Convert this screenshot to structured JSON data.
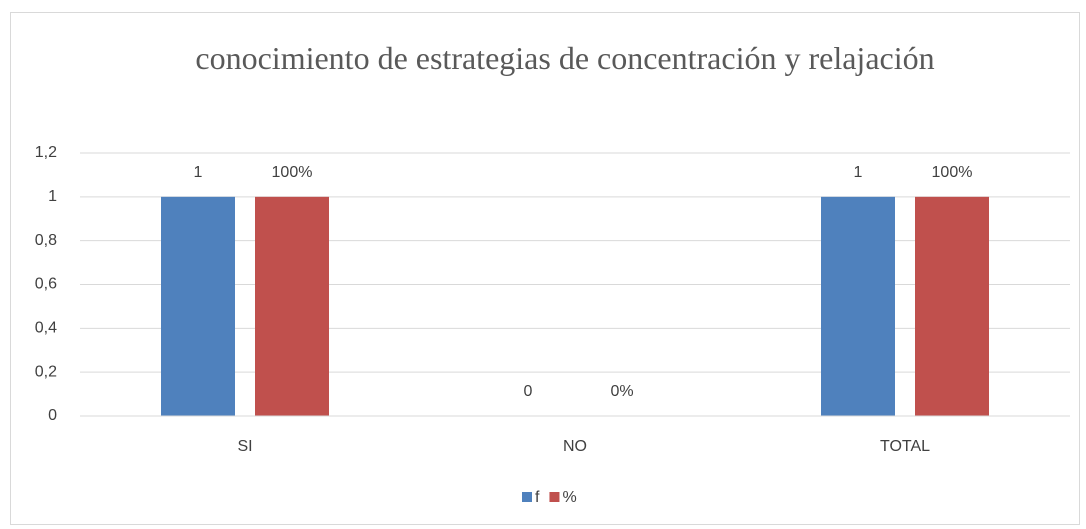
{
  "chart_data": {
    "type": "bar",
    "title": "conocimiento de estrategias de concentración  y relajación",
    "categories": [
      "SI",
      "NO",
      "TOTAL"
    ],
    "series": [
      {
        "name": "f",
        "color": "#4f81bd",
        "values": [
          1,
          0,
          1
        ]
      },
      {
        "name": "%",
        "color": "#c0504d",
        "values": [
          1,
          0,
          1
        ],
        "value_labels": [
          "100%",
          "0%",
          "100%"
        ]
      }
    ],
    "ylim": [
      0,
      1.2
    ],
    "yticks": [
      0,
      {
        "value": 0.2,
        "label": "0,2"
      },
      {
        "value": 0.4,
        "label": "0,4"
      },
      {
        "value": 0.6,
        "label": "0,6"
      },
      {
        "value": 0.8,
        "label": "0,8"
      },
      1,
      {
        "value": 1.2,
        "label": "1,2"
      }
    ],
    "grid": true,
    "legend": "bottom"
  }
}
